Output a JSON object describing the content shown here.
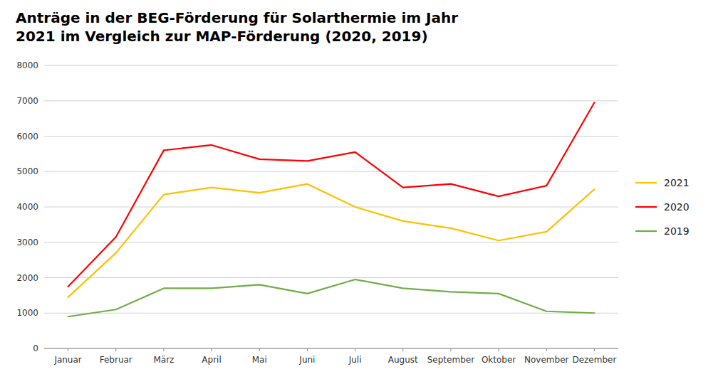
{
  "chart_data": {
    "type": "line",
    "title": "Anträge in der BEG-Förderung für Solarthermie im Jahr\n2021 im Vergleich zur MAP-Förderung (2020, 2019)",
    "categories": [
      "Januar",
      "Februar",
      "März",
      "April",
      "Mai",
      "Juni",
      "Juli",
      "August",
      "September",
      "Oktober",
      "November",
      "Dezember"
    ],
    "series": [
      {
        "name": "2021",
        "color": "#FFC000",
        "values": [
          1450,
          2700,
          4350,
          4550,
          4400,
          4650,
          4000,
          3600,
          3400,
          3050,
          3300,
          4500
        ]
      },
      {
        "name": "2020",
        "color": "#FF0000",
        "values": [
          1750,
          3150,
          5600,
          5750,
          5350,
          5300,
          5550,
          4550,
          4650,
          4300,
          4600,
          6950
        ]
      },
      {
        "name": "2019",
        "color": "#70AD47",
        "values": [
          900,
          1100,
          1700,
          1700,
          1800,
          1550,
          1950,
          1700,
          1600,
          1550,
          1050,
          1000
        ]
      }
    ],
    "ylim": [
      0,
      8000
    ],
    "yticks": [
      0,
      1000,
      2000,
      3000,
      4000,
      5000,
      6000,
      7000,
      8000
    ],
    "grid": true,
    "legend": "right"
  }
}
